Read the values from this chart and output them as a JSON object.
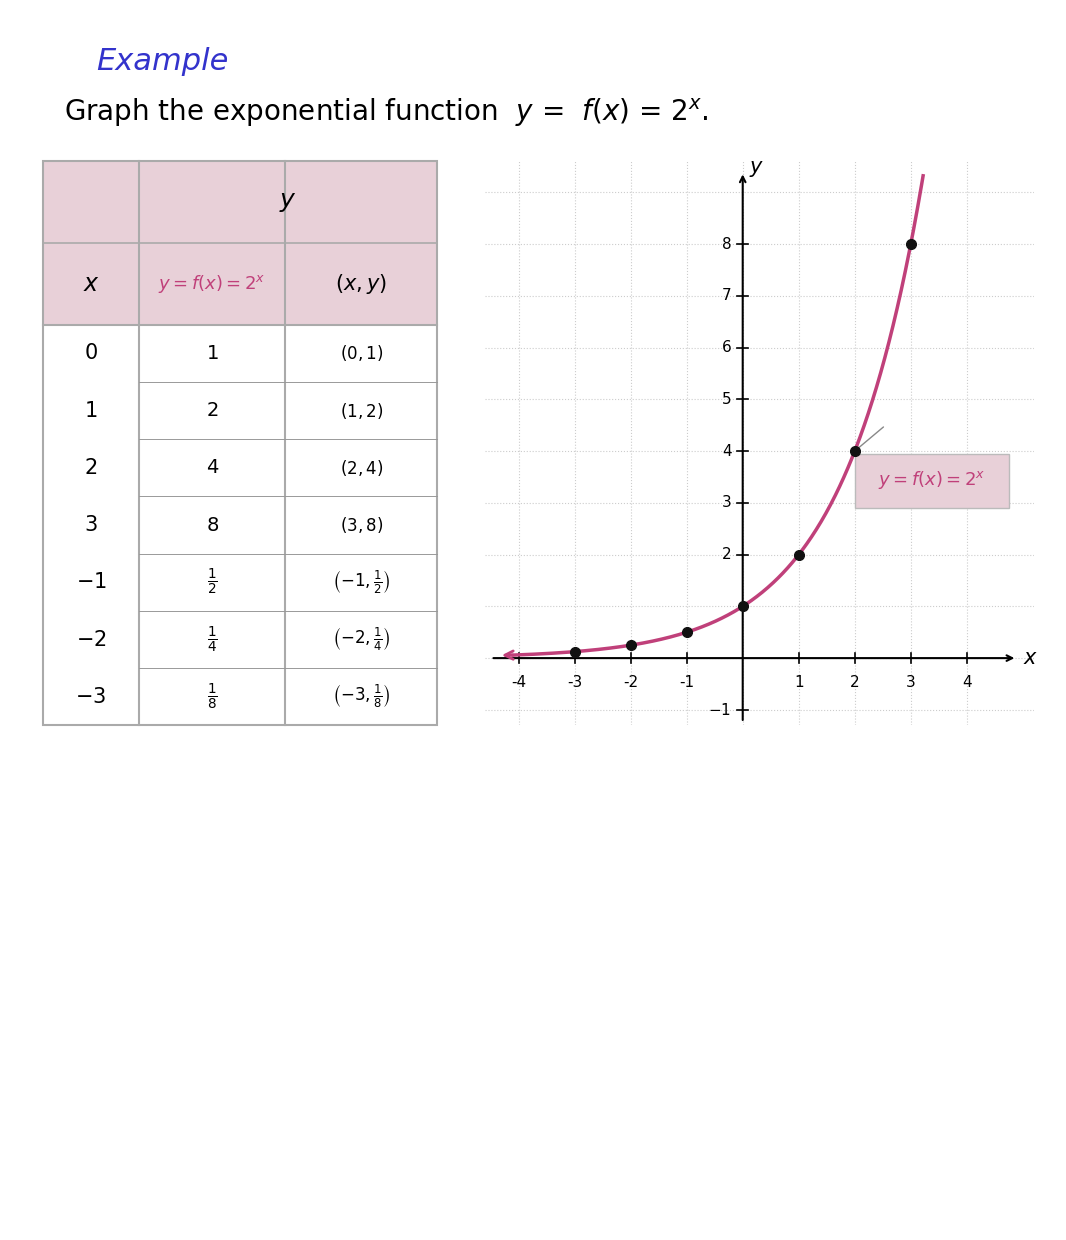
{
  "title_example": "Example",
  "title_example_color": "#3333cc",
  "bg_color": "#ffffff",
  "table_header_bg": "#e8d0d8",
  "table_border_color": "#aaaaaa",
  "curve_color": "#c0407a",
  "dot_color": "#111111",
  "label_color": "#c0407a",
  "x_vals": [
    -3,
    -2,
    -1,
    0,
    1,
    2,
    3
  ],
  "y_vals": [
    0.125,
    0.25,
    0.5,
    1,
    2,
    4,
    8
  ],
  "xlim": [
    -4.6,
    5.2
  ],
  "ylim": [
    -1.3,
    9.6
  ],
  "x_ticks": [
    -4,
    -3,
    -2,
    -1,
    1,
    2,
    3,
    4
  ],
  "y_ticks": [
    2,
    3,
    4,
    5,
    6,
    7,
    8
  ],
  "grid_color": "#cccccc"
}
